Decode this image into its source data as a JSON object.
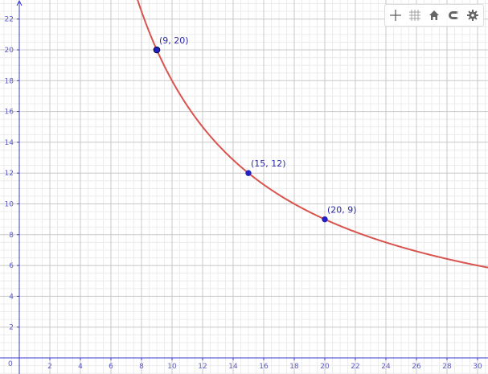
{
  "toolbar": {
    "buttons": [
      {
        "name": "axes-toggle-button",
        "icon": "axes-icon",
        "active": true
      },
      {
        "name": "grid-toggle-button",
        "icon": "grid-icon",
        "active": false
      },
      {
        "name": "home-button",
        "icon": "home-icon",
        "active": false
      },
      {
        "name": "magnet-button",
        "icon": "magnet-icon",
        "active": false
      },
      {
        "name": "settings-button",
        "icon": "gear-icon",
        "active": false
      }
    ]
  },
  "colors": {
    "curve": "#d9534f",
    "point": "#2020c0",
    "axis": "#3a3ad0",
    "grid_major": "#c8c8c8",
    "grid_minor": "#ececec",
    "tick_label": "#5a5ac8"
  },
  "chart_data": {
    "type": "line",
    "function": "y = 180 / x",
    "xlim": [
      0,
      30.5
    ],
    "ylim": [
      0,
      23
    ],
    "x_ticks": [
      "2",
      "4",
      "6",
      "8",
      "10",
      "12",
      "14",
      "16",
      "18",
      "20",
      "22",
      "24",
      "26",
      "28",
      "30"
    ],
    "y_ticks": [
      "2",
      "4",
      "6",
      "8",
      "10",
      "12",
      "14",
      "16",
      "18",
      "20",
      "22"
    ],
    "origin_label": "0",
    "grid": true,
    "points": [
      {
        "x": 9,
        "y": 20,
        "label": "(9, 20)"
      },
      {
        "x": 15,
        "y": 12,
        "label": "(15, 12)"
      },
      {
        "x": 20,
        "y": 9,
        "label": "(20, 9)"
      }
    ]
  }
}
